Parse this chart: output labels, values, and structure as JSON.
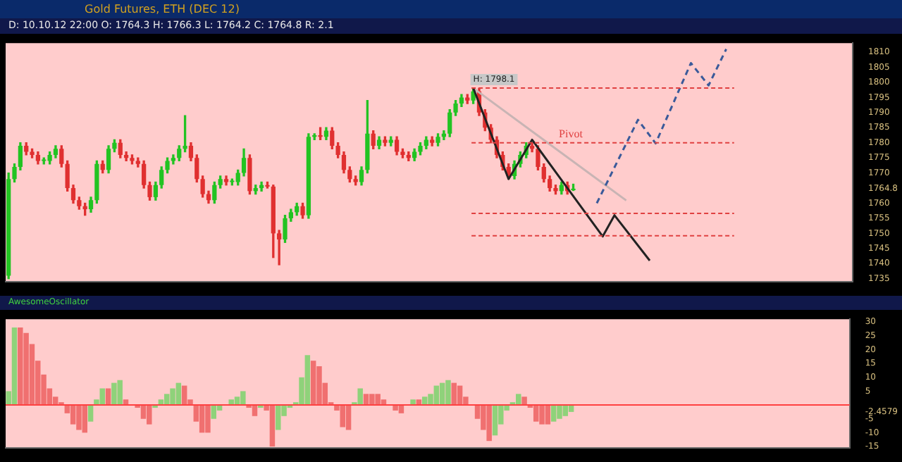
{
  "chart_data": [
    {
      "type": "candlestick",
      "title": "Gold Futures, ETH (DEC 12)",
      "subtitle": "D: 10.10.12 22:00   O: 1764.3   H: 1766.3   L: 1764.2   C: 1764.8   R: 2.1",
      "annotations": [
        {
          "text": "H: 1798.1",
          "y": 1798.1
        }
      ],
      "categories": [
        null,
        null,
        null,
        null,
        null,
        null,
        null,
        null,
        null,
        null,
        null,
        null,
        null,
        null,
        null,
        null,
        null,
        null,
        null,
        null,
        null,
        null,
        null,
        null,
        null,
        null,
        null,
        null,
        null,
        null,
        null,
        null,
        null,
        null,
        null,
        null,
        null,
        null,
        null,
        null,
        null,
        null,
        null,
        null,
        null,
        null,
        null,
        null,
        null,
        null,
        null,
        null,
        null,
        null,
        null,
        null,
        null,
        null,
        null,
        null,
        null,
        null,
        null,
        null,
        null,
        null,
        null,
        null,
        null,
        null,
        null,
        null,
        null,
        null,
        null,
        null,
        null,
        null,
        null,
        null,
        null,
        null,
        null,
        null,
        null,
        null,
        null,
        null,
        null,
        null,
        null,
        null,
        null,
        null,
        null,
        null,
        null,
        null,
        null,
        null,
        null,
        null,
        null,
        null,
        null,
        null,
        null,
        null,
        null,
        null,
        null,
        null,
        null,
        null,
        null,
        null,
        null,
        null,
        null,
        null,
        null,
        null,
        null,
        null,
        null,
        null,
        null,
        null,
        null,
        null,
        null,
        null,
        null,
        null,
        null,
        null,
        null,
        null,
        null,
        null,
        null,
        null,
        null,
        null
      ],
      "ohlc": [
        [
          1736,
          1770,
          1735,
          1768
        ],
        [
          1768,
          1773,
          1767,
          1772
        ],
        [
          1772,
          1780,
          1771,
          1779
        ],
        [
          1779,
          1780,
          1776,
          1777
        ],
        [
          1777,
          1778,
          1775,
          1776
        ],
        [
          1776,
          1777,
          1773,
          1774
        ],
        [
          1774,
          1775,
          1773,
          1774
        ],
        [
          1774,
          1777,
          1773,
          1776
        ],
        [
          1776,
          1779,
          1775,
          1778
        ],
        [
          1778,
          1779,
          1772,
          1773
        ],
        [
          1773,
          1774,
          1764,
          1765
        ],
        [
          1765,
          1766,
          1760,
          1761
        ],
        [
          1761,
          1762,
          1758,
          1759
        ],
        [
          1759,
          1760,
          1756,
          1758
        ],
        [
          1758,
          1762,
          1757,
          1761
        ],
        [
          1761,
          1774,
          1760,
          1773
        ],
        [
          1773,
          1774,
          1770,
          1771
        ],
        [
          1771,
          1779,
          1770,
          1778
        ],
        [
          1778,
          1781,
          1777,
          1780
        ],
        [
          1780,
          1781,
          1775,
          1776
        ],
        [
          1776,
          1777,
          1774,
          1775
        ],
        [
          1775,
          1776,
          1773,
          1774
        ],
        [
          1774,
          1775,
          1772,
          1773
        ],
        [
          1773,
          1774,
          1765,
          1766
        ],
        [
          1766,
          1767,
          1761,
          1762
        ],
        [
          1762,
          1767,
          1761,
          1766
        ],
        [
          1766,
          1772,
          1765,
          1771
        ],
        [
          1771,
          1775,
          1770,
          1774
        ],
        [
          1774,
          1776,
          1773,
          1775
        ],
        [
          1775,
          1779,
          1774,
          1778
        ],
        [
          1778,
          1789,
          1777,
          1779
        ],
        [
          1779,
          1780,
          1774,
          1775
        ],
        [
          1775,
          1776,
          1767,
          1768
        ],
        [
          1768,
          1769,
          1762,
          1763
        ],
        [
          1763,
          1764,
          1760,
          1761
        ],
        [
          1761,
          1767,
          1760,
          1766
        ],
        [
          1766,
          1769,
          1765,
          1768
        ],
        [
          1768,
          1769,
          1766,
          1767
        ],
        [
          1767,
          1768,
          1766,
          1767
        ],
        [
          1767,
          1771,
          1766,
          1770
        ],
        [
          1770,
          1778,
          1769,
          1775
        ],
        [
          1775,
          1776,
          1763,
          1764
        ],
        [
          1764,
          1766,
          1763,
          1765
        ],
        [
          1765,
          1767,
          1764,
          1766
        ],
        [
          1766,
          1767,
          1765,
          1765.5
        ],
        [
          1765.5,
          1766,
          1742,
          1750
        ],
        [
          1750,
          1751,
          1739.6,
          1748
        ],
        [
          1748,
          1756,
          1747,
          1755
        ],
        [
          1755,
          1758,
          1754,
          1757
        ],
        [
          1757,
          1760,
          1756,
          1759
        ],
        [
          1759,
          1760,
          1755,
          1756
        ],
        [
          1756,
          1783,
          1755,
          1782
        ],
        [
          1782,
          1783,
          1781,
          1782.5
        ],
        [
          1782.5,
          1785,
          1781,
          1782
        ],
        [
          1782,
          1785,
          1781,
          1784
        ],
        [
          1784,
          1785,
          1778,
          1779
        ],
        [
          1779,
          1780,
          1775,
          1776
        ],
        [
          1776,
          1777,
          1770,
          1771
        ],
        [
          1771,
          1772,
          1767,
          1768
        ],
        [
          1768,
          1769,
          1766,
          1767
        ],
        [
          1767,
          1772,
          1766,
          1771
        ],
        [
          1771,
          1794,
          1770,
          1783
        ],
        [
          1783,
          1784,
          1778,
          1779
        ],
        [
          1779,
          1782,
          1778,
          1781
        ],
        [
          1781,
          1782,
          1779,
          1780
        ],
        [
          1780,
          1782,
          1779,
          1781
        ],
        [
          1781,
          1782,
          1776,
          1777
        ],
        [
          1777,
          1778,
          1775,
          1776
        ],
        [
          1776,
          1777,
          1774,
          1775
        ],
        [
          1775,
          1778,
          1774,
          1777
        ],
        [
          1777,
          1780,
          1776,
          1779
        ],
        [
          1779,
          1782,
          1778,
          1781
        ],
        [
          1781,
          1782,
          1779,
          1780
        ],
        [
          1780,
          1783,
          1779,
          1782
        ],
        [
          1782,
          1784,
          1781,
          1783
        ],
        [
          1783,
          1791,
          1782,
          1790
        ],
        [
          1790,
          1794,
          1789,
          1793
        ],
        [
          1793,
          1796,
          1792,
          1795
        ],
        [
          1795,
          1796,
          1793,
          1794
        ],
        [
          1794,
          1798.1,
          1793,
          1797
        ],
        [
          1797,
          1798,
          1789,
          1790
        ],
        [
          1790,
          1791,
          1784,
          1785
        ],
        [
          1785,
          1786,
          1780,
          1781
        ],
        [
          1781,
          1782,
          1775,
          1776
        ],
        [
          1776,
          1777,
          1771,
          1772
        ],
        [
          1772,
          1773,
          1768,
          1769
        ],
        [
          1769,
          1774,
          1768,
          1773
        ],
        [
          1773,
          1777,
          1772,
          1776
        ],
        [
          1776,
          1780,
          1775,
          1779
        ],
        [
          1779,
          1780,
          1777,
          1778
        ],
        [
          1778,
          1779,
          1771,
          1772
        ],
        [
          1772,
          1773,
          1767,
          1768
        ],
        [
          1768,
          1769,
          1764,
          1765
        ],
        [
          1765,
          1766,
          1763,
          1764
        ],
        [
          1764,
          1767,
          1763,
          1766
        ],
        [
          1766,
          1767,
          1763,
          1764
        ],
        [
          1764.3,
          1766.3,
          1764.2,
          1764.8
        ],
        null,
        null,
        null,
        null,
        null,
        null,
        null,
        null,
        null,
        null,
        null,
        null,
        null,
        null,
        null,
        null,
        null,
        null,
        null,
        null,
        null,
        null,
        null,
        null,
        null,
        null,
        null,
        null,
        null,
        null,
        null,
        null,
        null,
        null,
        null,
        null,
        null,
        null,
        null,
        null,
        null,
        null,
        null,
        null,
        null,
        null,
        null
      ],
      "colors": [
        "#22c322",
        "#22c322",
        "#22c322",
        "#e03030",
        "#e03030",
        "#e03030",
        "#22c322",
        "#22c322",
        "#22c322",
        "#e03030",
        "#e03030",
        "#e03030",
        "#e03030",
        "#e03030",
        "#22c322",
        "#22c322",
        "#e03030",
        "#22c322",
        "#22c322",
        "#e03030",
        "#e03030",
        "#e03030",
        "#e03030",
        "#e03030",
        "#e03030",
        "#22c322",
        "#22c322",
        "#22c322",
        "#22c322",
        "#22c322",
        "#22c322",
        "#e03030",
        "#e03030",
        "#e03030",
        "#e03030",
        "#22c322",
        "#22c322",
        "#e03030",
        "#22c322",
        "#22c322",
        "#22c322",
        "#e03030",
        "#22c322",
        "#22c322",
        "#e03030",
        "#e03030",
        "#e03030",
        "#22c322",
        "#22c322",
        "#22c322",
        "#e03030",
        "#22c322",
        "#22c322",
        "#e03030",
        "#22c322",
        "#e03030",
        "#e03030",
        "#e03030",
        "#e03030",
        "#e03030",
        "#22c322",
        "#22c322",
        "#e03030",
        "#22c322",
        "#e03030",
        "#22c322",
        "#e03030",
        "#e03030",
        "#e03030",
        "#22c322",
        "#22c322",
        "#22c322",
        "#e03030",
        "#22c322",
        "#22c322",
        "#22c322",
        "#22c322",
        "#22c322",
        "#e03030",
        "#22c322",
        "#e03030",
        "#e03030",
        "#e03030",
        "#e03030",
        "#e03030",
        "#e03030",
        "#22c322",
        "#22c322",
        "#22c322",
        "#e03030",
        "#e03030",
        "#e03030",
        "#e03030",
        "#e03030",
        "#22c322",
        "#e03030",
        "#22c322",
        null,
        null,
        null,
        null,
        null,
        null,
        null,
        null,
        null,
        null,
        null,
        null,
        null,
        null,
        null,
        null,
        null,
        null,
        null,
        null,
        null,
        null,
        null,
        null,
        null,
        null,
        null,
        null,
        null,
        null,
        null,
        null,
        null,
        null,
        null,
        null,
        null,
        null,
        null,
        null,
        null,
        null,
        null,
        null,
        null,
        null,
        null
      ],
      "series": [
        {
          "type": "line",
          "color": "#222222",
          "line_style": "solid",
          "values": [
            null,
            null,
            null,
            null,
            null,
            null,
            null,
            null,
            null,
            null,
            null,
            null,
            null,
            null,
            null,
            null,
            null,
            null,
            null,
            null,
            null,
            null,
            null,
            null,
            null,
            null,
            null,
            null,
            null,
            null,
            null,
            null,
            null,
            null,
            null,
            null,
            null,
            null,
            null,
            null,
            null,
            null,
            null,
            null,
            null,
            null,
            null,
            null,
            null,
            null,
            null,
            null,
            null,
            null,
            null,
            null,
            null,
            null,
            null,
            null,
            null,
            null,
            null,
            null,
            null,
            null,
            null,
            null,
            null,
            null,
            null,
            null,
            null,
            null,
            null,
            null,
            null,
            null,
            null,
            1798.1,
            null,
            null,
            null,
            null,
            null,
            1768,
            null,
            null,
            null,
            1781,
            null,
            null,
            null,
            null,
            null,
            null,
            null,
            null,
            null,
            null,
            null,
            1749,
            null,
            1756,
            null,
            null,
            null,
            null,
            null,
            1741,
            null,
            null,
            null,
            null,
            null,
            null,
            null,
            null,
            null,
            null,
            null,
            null,
            null,
            null,
            null,
            null,
            null,
            null,
            null,
            null,
            null,
            null,
            null,
            null,
            null,
            null,
            null,
            null,
            null,
            null,
            null,
            null,
            null,
            null
          ]
        },
        {
          "type": "line",
          "color": "#3a5a9a",
          "line_style": "dashed",
          "values": [
            null,
            null,
            null,
            null,
            null,
            null,
            null,
            null,
            null,
            null,
            null,
            null,
            null,
            null,
            null,
            null,
            null,
            null,
            null,
            null,
            null,
            null,
            null,
            null,
            null,
            null,
            null,
            null,
            null,
            null,
            null,
            null,
            null,
            null,
            null,
            null,
            null,
            null,
            null,
            null,
            null,
            null,
            null,
            null,
            null,
            null,
            null,
            null,
            null,
            null,
            null,
            null,
            null,
            null,
            null,
            null,
            null,
            null,
            null,
            null,
            null,
            null,
            null,
            null,
            null,
            null,
            null,
            null,
            null,
            null,
            null,
            null,
            null,
            null,
            null,
            null,
            null,
            null,
            null,
            null,
            null,
            null,
            null,
            null,
            null,
            null,
            null,
            null,
            null,
            null,
            null,
            null,
            null,
            null,
            null,
            null,
            null,
            null,
            null,
            null,
            1760,
            null,
            null,
            null,
            null,
            null,
            null,
            1787.6,
            null,
            null,
            1779.8,
            null,
            null,
            null,
            null,
            null,
            1806.4,
            null,
            null,
            1799,
            null,
            null,
            1811,
            null,
            null,
            null,
            null,
            null,
            null,
            null,
            null,
            null,
            null,
            null,
            null,
            null,
            null,
            null,
            null,
            null,
            null,
            null,
            null,
            null
          ]
        },
        {
          "type": "line",
          "color": "#c8b4b4",
          "line_style": "solid",
          "values": [
            null,
            null,
            null,
            null,
            null,
            null,
            null,
            null,
            null,
            null,
            null,
            null,
            null,
            null,
            null,
            null,
            null,
            null,
            null,
            null,
            null,
            null,
            null,
            null,
            null,
            null,
            null,
            null,
            null,
            null,
            null,
            null,
            null,
            null,
            null,
            null,
            null,
            null,
            null,
            null,
            null,
            null,
            null,
            null,
            null,
            null,
            null,
            null,
            null,
            null,
            null,
            null,
            null,
            null,
            null,
            null,
            null,
            null,
            null,
            null,
            null,
            null,
            null,
            null,
            null,
            null,
            null,
            null,
            null,
            null,
            null,
            null,
            null,
            null,
            null,
            null,
            null,
            null,
            null,
            1798.1,
            null,
            null,
            null,
            null,
            null,
            null,
            null,
            null,
            null,
            null,
            null,
            null,
            null,
            null,
            null,
            null,
            null,
            null,
            null,
            null,
            null,
            null,
            null,
            null,
            null,
            1760.9,
            null,
            null,
            null,
            null,
            null,
            null,
            null,
            null,
            null,
            null,
            null,
            null,
            null,
            null,
            null,
            null,
            null,
            null,
            null,
            null,
            null,
            null,
            null,
            null,
            null,
            null,
            null,
            null,
            null,
            null,
            null,
            null,
            null,
            null,
            null,
            null,
            null,
            null
          ]
        }
      ],
      "ylim": [
        1734,
        1813
      ],
      "yticks": [
        1735,
        1740,
        1745,
        1750,
        1755,
        1760,
        {
          "value": 1764.8,
          "label": "1764.8"
        },
        1770,
        1775,
        1780,
        1785,
        1790,
        1795,
        1800,
        1805,
        1810
      ],
      "ref_lines": [
        {
          "axis": "y",
          "value": 1798.1,
          "color": "#e04040",
          "line_style": "dashed"
        },
        {
          "axis": "y",
          "value": 1780,
          "label": "Pivot",
          "color": "#e04040",
          "line_style": "dashed"
        },
        {
          "axis": "y",
          "value": 1756.6,
          "color": "#e04040",
          "line_style": "dashed"
        },
        {
          "axis": "y",
          "value": 1749.2,
          "color": "#e04040",
          "line_style": "dashed"
        }
      ],
      "tick_labels": "y",
      "grid": false,
      "legend": false,
      "marker": "none"
    },
    {
      "type": "bar",
      "title": "AwesomeOscillator",
      "categories": [
        null,
        null,
        null,
        null,
        null,
        null,
        null,
        null,
        null,
        null,
        null,
        null,
        null,
        null,
        null,
        null,
        null,
        null,
        null,
        null,
        null,
        null,
        null,
        null,
        null,
        null,
        null,
        null,
        null,
        null,
        null,
        null,
        null,
        null,
        null,
        null,
        null,
        null,
        null,
        null,
        null,
        null,
        null,
        null,
        null,
        null,
        null,
        null,
        null,
        null,
        null,
        null,
        null,
        null,
        null,
        null,
        null,
        null,
        null,
        null,
        null,
        null,
        null,
        null,
        null,
        null,
        null,
        null,
        null,
        null,
        null,
        null,
        null,
        null,
        null,
        null,
        null,
        null,
        null,
        null,
        null,
        null,
        null,
        null,
        null,
        null,
        null,
        null,
        null,
        null,
        null,
        null,
        null,
        null,
        null,
        null,
        null,
        null,
        null,
        null,
        null,
        null,
        null,
        null,
        null,
        null,
        null,
        null,
        null,
        null,
        null,
        null,
        null,
        null,
        null,
        null,
        null,
        null,
        null,
        null,
        null,
        null,
        null,
        null,
        null,
        null,
        null,
        null,
        null,
        null,
        null,
        null,
        null,
        null,
        null,
        null,
        null,
        null,
        null,
        null,
        null,
        null,
        null,
        null
      ],
      "values": [
        5,
        28,
        28,
        26,
        22,
        16,
        11,
        6,
        3,
        1,
        -3,
        -7,
        -9,
        -10,
        -6,
        2,
        6,
        6,
        8,
        9,
        2,
        0,
        -1,
        -5,
        -7,
        -1,
        2,
        4,
        6,
        8,
        7,
        2,
        -6,
        -10,
        -10,
        -5,
        -2,
        0,
        2,
        3,
        5,
        -1,
        -4,
        -1,
        -2,
        -15,
        -9,
        -4,
        -1,
        1,
        10,
        18,
        16,
        14,
        8,
        1,
        -2,
        -8,
        -9,
        1,
        6,
        4,
        4,
        4,
        2,
        0,
        -2,
        -3,
        0,
        2,
        2,
        3,
        4,
        7,
        8,
        9,
        8,
        7,
        3,
        0,
        -5,
        -9,
        -13,
        -11,
        -7,
        -2,
        1,
        4,
        3,
        -1,
        -6,
        -7,
        -7,
        -6,
        -5,
        -4,
        -2.5,
        null,
        null,
        null,
        null,
        null,
        null,
        null,
        null,
        null,
        null,
        null,
        null,
        null,
        null,
        null,
        null,
        null,
        null,
        null,
        null,
        null,
        null,
        null,
        null,
        null,
        null,
        null,
        null,
        null,
        null,
        null,
        null,
        null,
        null,
        null,
        null,
        null,
        null,
        null,
        null,
        null,
        null,
        null,
        null,
        null,
        null,
        null
      ],
      "colors": [
        "#8fd27a",
        "#8fd27a",
        "#f07070",
        "#f07070",
        "#f07070",
        "#f07070",
        "#f07070",
        "#f07070",
        "#f07070",
        "#f07070",
        "#f07070",
        "#f07070",
        "#f07070",
        "#f07070",
        "#8fd27a",
        "#8fd27a",
        "#8fd27a",
        "#f07070",
        "#8fd27a",
        "#8fd27a",
        "#f07070",
        "#f07070",
        "#f07070",
        "#f07070",
        "#f07070",
        "#8fd27a",
        "#8fd27a",
        "#8fd27a",
        "#8fd27a",
        "#8fd27a",
        "#f07070",
        "#f07070",
        "#f07070",
        "#f07070",
        "#f07070",
        "#8fd27a",
        "#8fd27a",
        "#8fd27a",
        "#8fd27a",
        "#8fd27a",
        "#8fd27a",
        "#f07070",
        "#f07070",
        "#8fd27a",
        "#f07070",
        "#f07070",
        "#8fd27a",
        "#8fd27a",
        "#8fd27a",
        "#8fd27a",
        "#8fd27a",
        "#8fd27a",
        "#f07070",
        "#f07070",
        "#f07070",
        "#f07070",
        "#f07070",
        "#f07070",
        "#f07070",
        "#8fd27a",
        "#8fd27a",
        "#f07070",
        "#f07070",
        "#f07070",
        "#f07070",
        "#f07070",
        "#f07070",
        "#f07070",
        "#8fd27a",
        "#8fd27a",
        "#f07070",
        "#8fd27a",
        "#8fd27a",
        "#8fd27a",
        "#8fd27a",
        "#8fd27a",
        "#f07070",
        "#f07070",
        "#f07070",
        "#f07070",
        "#f07070",
        "#f07070",
        "#f07070",
        "#8fd27a",
        "#8fd27a",
        "#8fd27a",
        "#8fd27a",
        "#8fd27a",
        "#f07070",
        "#f07070",
        "#f07070",
        "#f07070",
        "#f07070",
        "#8fd27a",
        "#8fd27a",
        "#8fd27a",
        "#8fd27a",
        "#8fd27a",
        "#8fd27a",
        null,
        null,
        null,
        null,
        null,
        null,
        null,
        null,
        null,
        null,
        null,
        null,
        null,
        null,
        null,
        null,
        null,
        null,
        null,
        null,
        null,
        null,
        null,
        null,
        null,
        null,
        null,
        null,
        null,
        null,
        null,
        null,
        null,
        null,
        null,
        null,
        null,
        null,
        null,
        null,
        null,
        null,
        null,
        null,
        null
      ],
      "ylim": [
        -15.5,
        31
      ],
      "yticks": [
        -15,
        -10,
        -5,
        {
          "value": -2.4579,
          "label": "-2.4579"
        },
        5,
        10,
        15,
        20,
        25,
        30
      ],
      "ref_lines": [
        {
          "axis": "y",
          "value": 0,
          "color": "#ff4040",
          "line_style": "solid"
        }
      ],
      "tick_labels": "y",
      "grid": false,
      "legend": false
    }
  ]
}
